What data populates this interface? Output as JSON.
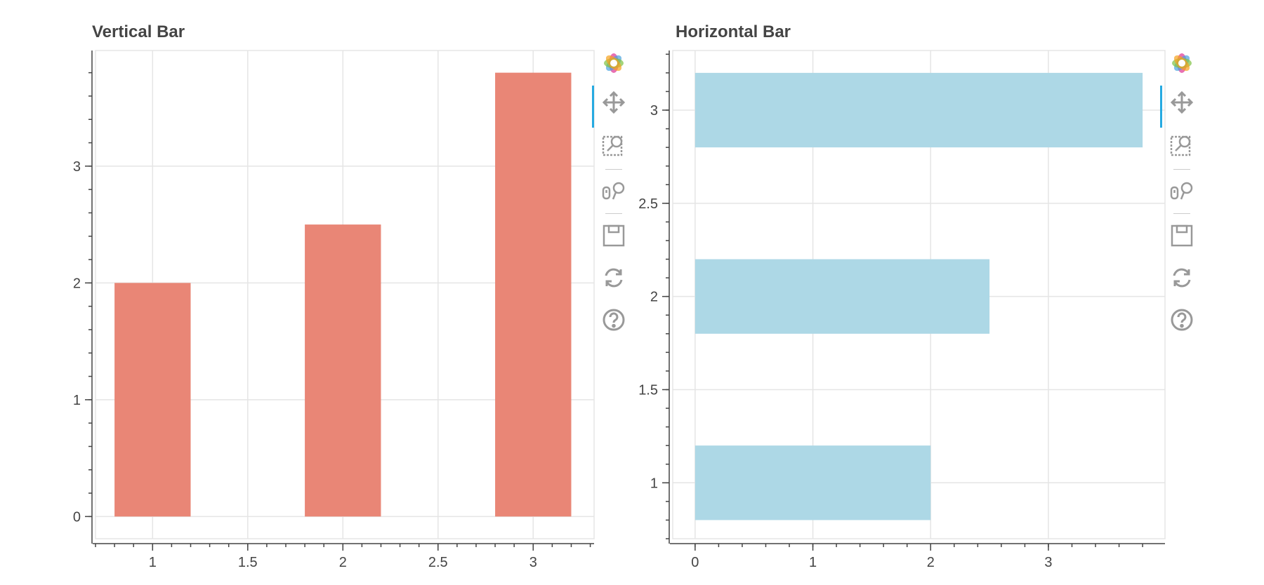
{
  "chart_data": [
    {
      "type": "bar",
      "orientation": "vertical",
      "title": "Vertical Bar",
      "x": [
        1,
        2,
        3
      ],
      "values": [
        2,
        2.5,
        3.8
      ],
      "bar_width": 0.4,
      "xlim": [
        0.7,
        3.32
      ],
      "ylim": [
        -0.19,
        3.99
      ],
      "x_ticks": [
        1,
        1.5,
        2,
        2.5,
        3
      ],
      "y_ticks": [
        0,
        1,
        2,
        3
      ],
      "x_tick_labels": [
        "1",
        "1.5",
        "2",
        "2.5",
        "3"
      ],
      "y_tick_labels": [
        "0",
        "1",
        "2",
        "3"
      ],
      "xlabel": "",
      "ylabel": "",
      "color": "#e98676",
      "grid": true
    },
    {
      "type": "bar",
      "orientation": "horizontal",
      "title": "Horizontal Bar",
      "y": [
        1,
        2,
        3
      ],
      "values": [
        2,
        2.5,
        3.8
      ],
      "bar_height": 0.4,
      "xlim": [
        -0.19,
        3.99
      ],
      "ylim": [
        0.7,
        3.32
      ],
      "x_ticks": [
        0,
        1,
        2,
        3
      ],
      "y_ticks": [
        1,
        1.5,
        2,
        2.5,
        3
      ],
      "x_tick_labels": [
        "0",
        "1",
        "2",
        "3"
      ],
      "y_tick_labels": [
        "1",
        "1.5",
        "2",
        "2.5",
        "3"
      ],
      "xlabel": "",
      "ylabel": "",
      "color": "#add8e6",
      "grid": true
    }
  ],
  "toolbar": {
    "tools": [
      {
        "icon": "bokeh-logo-icon",
        "active": false
      },
      {
        "icon": "pan-icon",
        "active": true
      },
      {
        "icon": "box-zoom-icon",
        "active": false
      },
      {
        "icon": "wheel-zoom-icon",
        "active": false
      },
      {
        "icon": "save-icon",
        "active": false
      },
      {
        "icon": "reset-icon",
        "active": false
      },
      {
        "icon": "help-icon",
        "active": false
      }
    ]
  }
}
